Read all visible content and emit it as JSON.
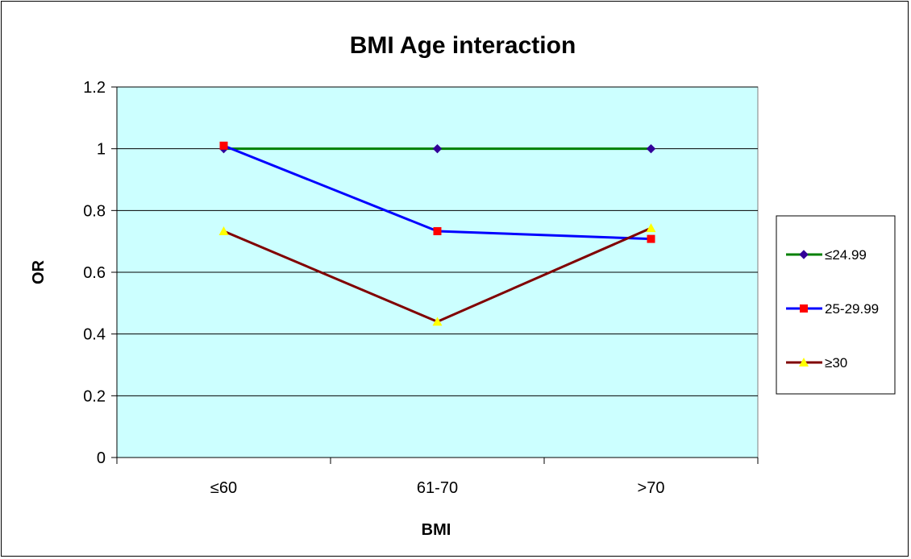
{
  "chart_data": {
    "type": "line",
    "title": "BMI Age interaction",
    "xlabel": "BMI",
    "ylabel": "OR",
    "categories": [
      "≤60",
      "61-70",
      ">70"
    ],
    "ylim": [
      0,
      1.2
    ],
    "yticks": [
      "0",
      "0.2",
      "0.4",
      "0.6",
      "0.8",
      "1",
      "1.2"
    ],
    "grid": true,
    "plot_background": "#ccffff",
    "legend_position": "right",
    "series": [
      {
        "name": "≤24.99",
        "values": [
          1.0,
          1.0,
          1.0
        ],
        "line_color": "#008000",
        "marker": "diamond",
        "marker_color": "#330099"
      },
      {
        "name": "25-29.99",
        "values": [
          1.01,
          0.733,
          0.708
        ],
        "line_color": "#0000ff",
        "marker": "square",
        "marker_color": "#ff0000"
      },
      {
        "name": "≥30",
        "values": [
          0.733,
          0.44,
          0.743
        ],
        "line_color": "#800000",
        "marker": "triangle",
        "marker_color": "#ffff00"
      }
    ]
  }
}
